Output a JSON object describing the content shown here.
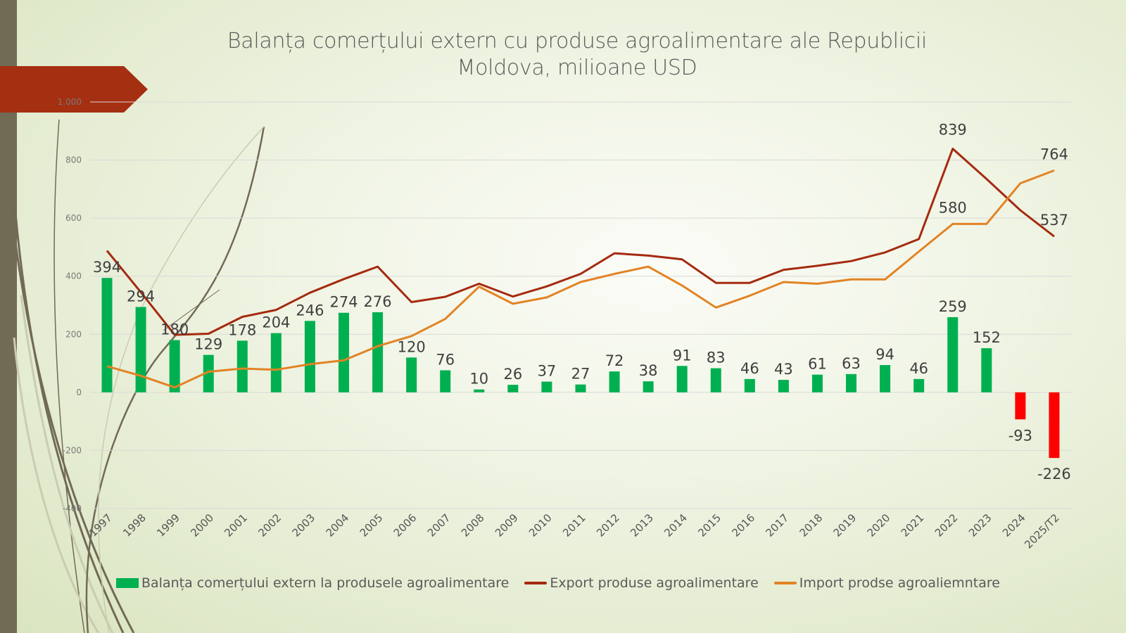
{
  "slide": {
    "title_line1": "Balanța comerțului extern cu  produse agroalimentare ale Republicii",
    "title_line2": "Moldova, milioane USD"
  },
  "colors": {
    "balance_positive": "#00b050",
    "balance_negative": "#ff0000",
    "export_line": "#a52a0f",
    "import_line": "#e28324",
    "banner": "#a52f11",
    "left_bar": "#716a55"
  },
  "chart_data": {
    "type": "bar+line",
    "title": "Balanța comerțului extern cu  produse agroalimentare ale Republicii Moldova, milioane USD",
    "xlabel": "",
    "ylabel": "",
    "ylim": [
      -400,
      1000
    ],
    "yticks": [
      -400,
      -200,
      0,
      200,
      400,
      600,
      800,
      1000
    ],
    "ytick_labels": [
      "-400",
      "-200",
      "0",
      "200",
      "400",
      "600",
      "800",
      "1.000"
    ],
    "grid": true,
    "legend_position": "bottom",
    "categories": [
      "1997",
      "1998",
      "1999",
      "2000",
      "2001",
      "2002",
      "2003",
      "2004",
      "2005",
      "2006",
      "2007",
      "2008",
      "2009",
      "2010",
      "2011",
      "2012",
      "2013",
      "2014",
      "2015",
      "2016",
      "2017",
      "2018",
      "2019",
      "2020",
      "2021",
      "2022",
      "2023",
      "2024",
      "2025/T2"
    ],
    "series": [
      {
        "name": "Balanța comerțului extern la produsele agroalimentare",
        "kind": "bar",
        "values": [
          394,
          294,
          180,
          129,
          178,
          204,
          246,
          274,
          276,
          120,
          76,
          10,
          26,
          37,
          27,
          72,
          38,
          91,
          83,
          46,
          43,
          61,
          63,
          94,
          46,
          259,
          152,
          -93,
          -226
        ],
        "data_labels": true
      },
      {
        "name": "Export produse agroalimentare",
        "kind": "line",
        "values": [
          488,
          345,
          198,
          202,
          260,
          284,
          343,
          390,
          433,
          311,
          329,
          374,
          330,
          365,
          408,
          479,
          471,
          458,
          377,
          377,
          422,
          436,
          452,
          482,
          528,
          839,
          735,
          627,
          537
        ],
        "labeled_points": {
          "2022": "839",
          "2025/T2": "537"
        }
      },
      {
        "name": "Import prodse agroaliemntare",
        "kind": "line",
        "values": [
          90,
          57,
          17,
          71,
          82,
          78,
          97,
          110,
          159,
          194,
          253,
          364,
          305,
          327,
          380,
          408,
          433,
          368,
          292,
          333,
          380,
          374,
          389,
          389,
          485,
          580,
          580,
          720,
          764
        ],
        "labeled_points": {
          "2022": "580",
          "2025/T2": "764"
        }
      }
    ]
  }
}
